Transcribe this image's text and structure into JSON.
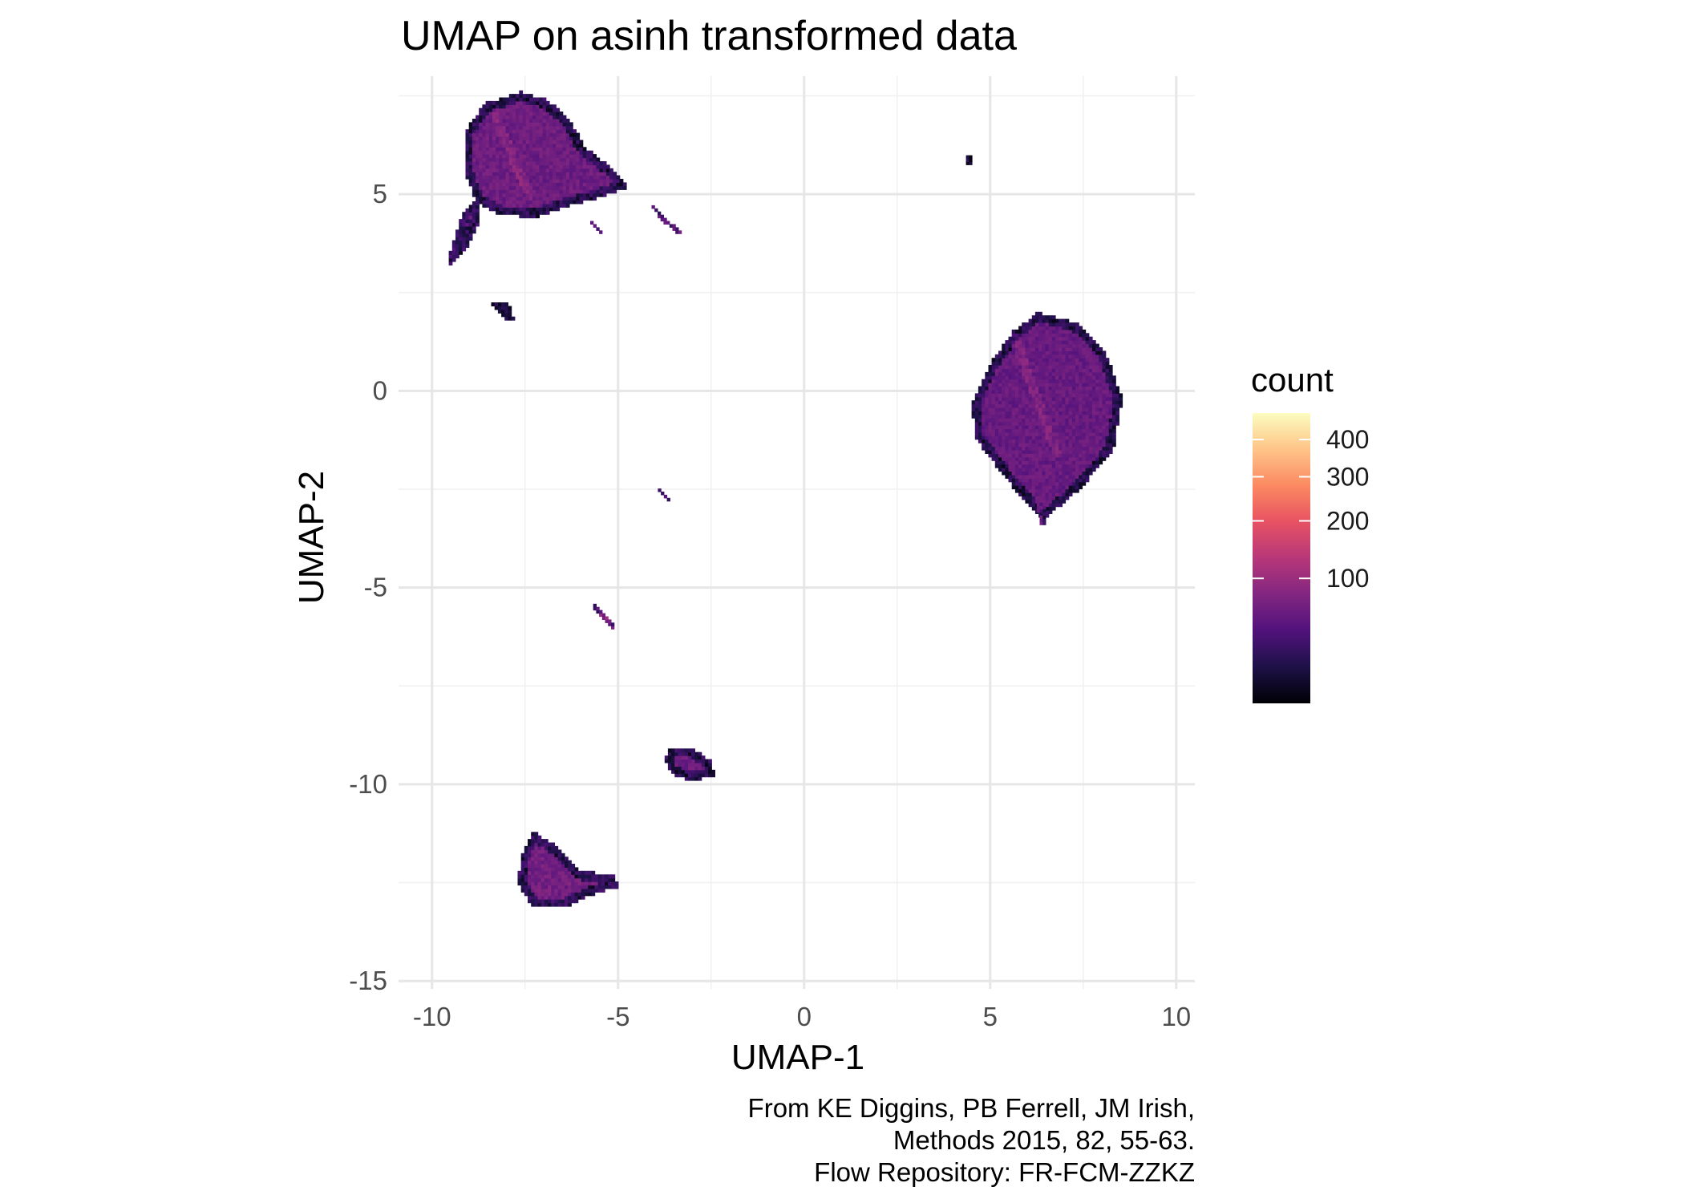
{
  "chart_data": {
    "type": "heatmap",
    "title": "UMAP on asinh transformed data",
    "xlabel": "UMAP-1",
    "ylabel": "UMAP-2",
    "xlim": [
      -10.9,
      10.5
    ],
    "ylim": [
      -15.2,
      8.0
    ],
    "x_ticks": [
      -10,
      -5,
      0,
      5,
      10
    ],
    "x_tick_labels": [
      "-10",
      "-5",
      "0",
      "5",
      "10"
    ],
    "y_ticks": [
      -15,
      -10,
      -5,
      0,
      5
    ],
    "y_tick_labels": [
      "-15",
      "-10",
      "-5",
      "0",
      "5"
    ],
    "grid": true,
    "color_scale": {
      "title": "count",
      "palette": "magma",
      "transform": "sqrt",
      "min": 1,
      "max": 480,
      "breaks": [
        100,
        200,
        300,
        400
      ],
      "break_labels": [
        "100",
        "200",
        "300",
        "400"
      ],
      "colors": [
        "#000004",
        "#1d1147",
        "#51127c",
        "#822681",
        "#b73779",
        "#e75263",
        "#fc8961",
        "#fec488",
        "#fcfdbf"
      ]
    },
    "legend_position": "right",
    "clusters": [
      {
        "region": [
          [
            -9.1,
            6.6
          ],
          [
            -8.6,
            7.3
          ],
          [
            -7.6,
            7.6
          ],
          [
            -6.9,
            7.4
          ],
          [
            -6.3,
            6.9
          ],
          [
            -5.9,
            6.2
          ],
          [
            -5.2,
            5.7
          ],
          [
            -4.7,
            5.2
          ],
          [
            -5.6,
            4.9
          ],
          [
            -6.4,
            4.7
          ],
          [
            -7.3,
            4.4
          ],
          [
            -8.2,
            4.5
          ],
          [
            -8.8,
            4.8
          ],
          [
            -9.1,
            5.5
          ]
        ],
        "count_level": 60,
        "cell": 0.09,
        "dense_line": [
          [
            -8.3,
            7.0
          ],
          [
            -7.4,
            5.0
          ]
        ]
      },
      {
        "region": [
          [
            -9.55,
            3.2
          ],
          [
            -9.1,
            3.6
          ],
          [
            -8.7,
            4.4
          ],
          [
            -8.8,
            4.9
          ],
          [
            -9.2,
            4.5
          ],
          [
            -9.5,
            3.6
          ]
        ],
        "count_level": 70,
        "cell": 0.09
      },
      {
        "region": [
          [
            -5.75,
            4.3
          ],
          [
            -5.6,
            4.15
          ],
          [
            -5.45,
            4.0
          ],
          [
            -5.5,
            4.15
          ],
          [
            -5.7,
            4.3
          ]
        ],
        "count_level": 110,
        "cell": 0.08
      },
      {
        "region": [
          [
            -4.1,
            4.8
          ],
          [
            -3.8,
            4.45
          ],
          [
            -3.3,
            4.05
          ],
          [
            -3.4,
            4.0
          ],
          [
            -3.85,
            4.35
          ],
          [
            -4.1,
            4.7
          ]
        ],
        "count_level": 130,
        "cell": 0.08
      },
      {
        "region": [
          [
            -8.5,
            2.3
          ],
          [
            -7.9,
            2.2
          ],
          [
            -7.8,
            1.8
          ],
          [
            -8.0,
            1.8
          ],
          [
            -8.3,
            2.05
          ]
        ],
        "count_level": 40,
        "cell": 0.09
      },
      {
        "region": [
          [
            4.35,
            6.0
          ],
          [
            4.5,
            6.0
          ],
          [
            4.5,
            5.75
          ],
          [
            4.35,
            5.75
          ]
        ],
        "count_level": 40,
        "cell": 0.08
      },
      {
        "region": [
          [
            5.6,
            1.5
          ],
          [
            6.3,
            2.0
          ],
          [
            7.4,
            1.7
          ],
          [
            8.1,
            1.0
          ],
          [
            8.55,
            -0.2
          ],
          [
            8.3,
            -1.5
          ],
          [
            7.4,
            -2.5
          ],
          [
            6.4,
            -3.3
          ],
          [
            5.4,
            -2.2
          ],
          [
            4.6,
            -1.2
          ],
          [
            4.5,
            -0.3
          ],
          [
            5.0,
            0.7
          ]
        ],
        "count_level": 55,
        "cell": 0.09,
        "dense_line": [
          [
            5.6,
            1.5
          ],
          [
            6.8,
            -1.6
          ]
        ]
      },
      {
        "region": [
          [
            6.25,
            -2.8
          ],
          [
            6.55,
            -2.8
          ],
          [
            6.45,
            -3.4
          ],
          [
            6.35,
            -3.4
          ]
        ],
        "count_level": 150,
        "cell": 0.08
      },
      {
        "region": [
          [
            -4.25,
            -2.1
          ],
          [
            -3.7,
            -2.75
          ],
          [
            -3.6,
            -2.8
          ],
          [
            -4.15,
            -2.2
          ]
        ],
        "count_level": 180,
        "cell": 0.08
      },
      {
        "region": [
          [
            -5.75,
            -5.4
          ],
          [
            -5.15,
            -6.05
          ],
          [
            -5.05,
            -6.0
          ],
          [
            -5.65,
            -5.4
          ]
        ],
        "count_level": 200,
        "cell": 0.08
      },
      {
        "region": [
          [
            -3.6,
            -9.05
          ],
          [
            -3.0,
            -9.1
          ],
          [
            -2.5,
            -9.4
          ],
          [
            -2.4,
            -9.8
          ],
          [
            -3.1,
            -9.9
          ],
          [
            -3.6,
            -9.7
          ],
          [
            -3.75,
            -9.35
          ]
        ],
        "count_level": 60,
        "cell": 0.09
      },
      {
        "region": [
          [
            -7.3,
            -11.2
          ],
          [
            -6.6,
            -11.6
          ],
          [
            -6.0,
            -12.2
          ],
          [
            -5.1,
            -12.3
          ],
          [
            -5.0,
            -12.6
          ],
          [
            -5.7,
            -12.8
          ],
          [
            -6.4,
            -13.1
          ],
          [
            -7.3,
            -13.1
          ],
          [
            -7.7,
            -12.5
          ],
          [
            -7.6,
            -11.8
          ]
        ],
        "count_level": 65,
        "cell": 0.09
      }
    ]
  },
  "caption": {
    "line1": "From KE Diggins, PB Ferrell, JM Irish,",
    "line2": "Methods 2015, 82, 55-63.",
    "line3": "Flow Repository: FR-FCM-ZZKZ"
  }
}
